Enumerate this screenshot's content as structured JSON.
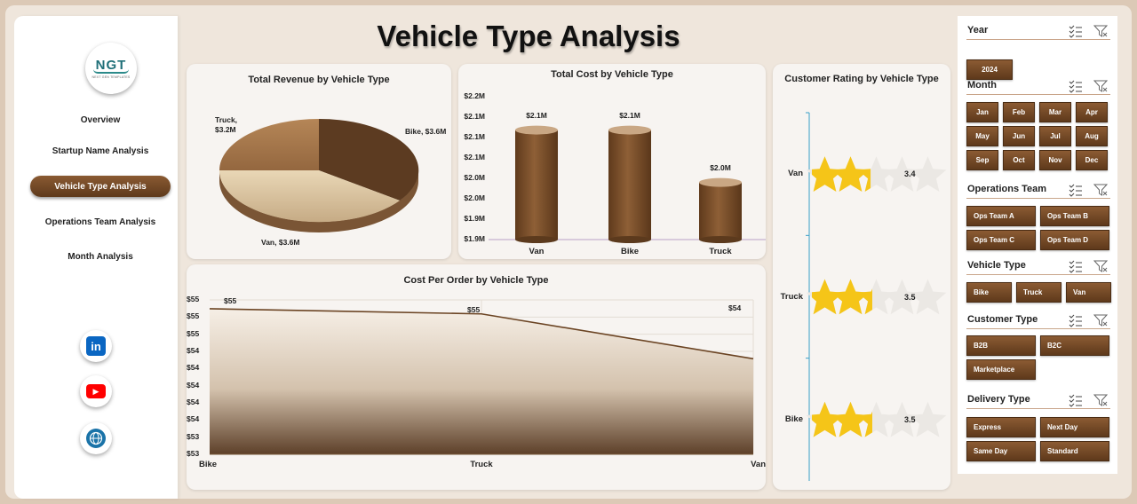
{
  "title": "Vehicle Type Analysis",
  "logo": {
    "text": "NGT",
    "subtitle": "NEXT GEN TEMPLATES"
  },
  "nav": {
    "items": [
      {
        "label": "Overview",
        "active": false
      },
      {
        "label": "Startup Name Analysis",
        "active": false
      },
      {
        "label": "Vehicle Type Analysis",
        "active": true
      },
      {
        "label": "Operations Team Analysis",
        "active": false
      },
      {
        "label": "Month Analysis",
        "active": false
      }
    ]
  },
  "social": [
    {
      "icon": "linkedin-icon",
      "glyph": "in",
      "color": "#0a66c2"
    },
    {
      "icon": "youtube-icon",
      "glyph": "▶",
      "color": "#ff0000"
    },
    {
      "icon": "globe-icon",
      "glyph": "🌐",
      "color": "#1a73a8"
    }
  ],
  "colors": {
    "brown_dark": "#5e391b",
    "brown": "#8b5b33",
    "star": "#f5c518",
    "line": "#6b4423"
  },
  "slicers": {
    "year": {
      "title": "Year",
      "options": [
        "2024"
      ]
    },
    "month": {
      "title": "Month",
      "options": [
        "Jan",
        "Feb",
        "Mar",
        "Apr",
        "May",
        "Jun",
        "Jul",
        "Aug",
        "Sep",
        "Oct",
        "Nov",
        "Dec"
      ]
    },
    "ops_team": {
      "title": "Operations Team",
      "options": [
        "Ops Team A",
        "Ops Team B",
        "Ops Team C",
        "Ops Team D"
      ]
    },
    "vehicle_type": {
      "title": "Vehicle Type",
      "options": [
        "Bike",
        "Truck",
        "Van"
      ]
    },
    "customer_type": {
      "title": "Customer Type",
      "options": [
        "B2B",
        "B2C",
        "Marketplace"
      ]
    },
    "delivery_type": {
      "title": "Delivery Type",
      "options": [
        "Express",
        "Next Day",
        "Same Day",
        "Standard"
      ]
    }
  },
  "chart_data": [
    {
      "type": "pie",
      "title": "Total Revenue by Vehicle Type",
      "categories": [
        "Bike",
        "Van",
        "Truck"
      ],
      "values": [
        3.6,
        3.6,
        3.2
      ],
      "labels": [
        "Bike, $3.6M",
        "Van, $3.6M",
        "Truck,",
        "$3.2M"
      ],
      "unit": "$M"
    },
    {
      "type": "bar",
      "title": "Total Cost by Vehicle Type",
      "categories": [
        "Van",
        "Bike",
        "Truck"
      ],
      "values": [
        2.13,
        2.13,
        2.02
      ],
      "data_labels": [
        "$2.1M",
        "$2.1M",
        "$2.0M"
      ],
      "y_ticks": [
        "$2.2M",
        "$2.1M",
        "$2.1M",
        "$2.1M",
        "$2.0M",
        "$2.0M",
        "$1.9M",
        "$1.9M"
      ],
      "ylim": [
        1.9,
        2.2
      ]
    },
    {
      "type": "area",
      "title": "Cost Per Order by Vehicle Type",
      "categories": [
        "Bike",
        "Truck",
        "Van"
      ],
      "values": [
        54.98,
        54.91,
        54.3
      ],
      "data_labels": [
        "$55",
        "$55",
        "$54"
      ],
      "y_ticks": [
        "$55",
        "$55",
        "$55",
        "$54",
        "$54",
        "$54",
        "$54",
        "$54",
        "$53",
        "$53"
      ],
      "ylim": [
        53.0,
        55.1
      ]
    },
    {
      "type": "bar",
      "title": "Customer Rating by Vehicle Type",
      "categories": [
        "Van",
        "Truck",
        "Bike"
      ],
      "values": [
        3.4,
        3.5,
        3.5
      ],
      "data_labels": [
        "3.4",
        "3.5",
        "3.5"
      ],
      "max": 5
    }
  ]
}
